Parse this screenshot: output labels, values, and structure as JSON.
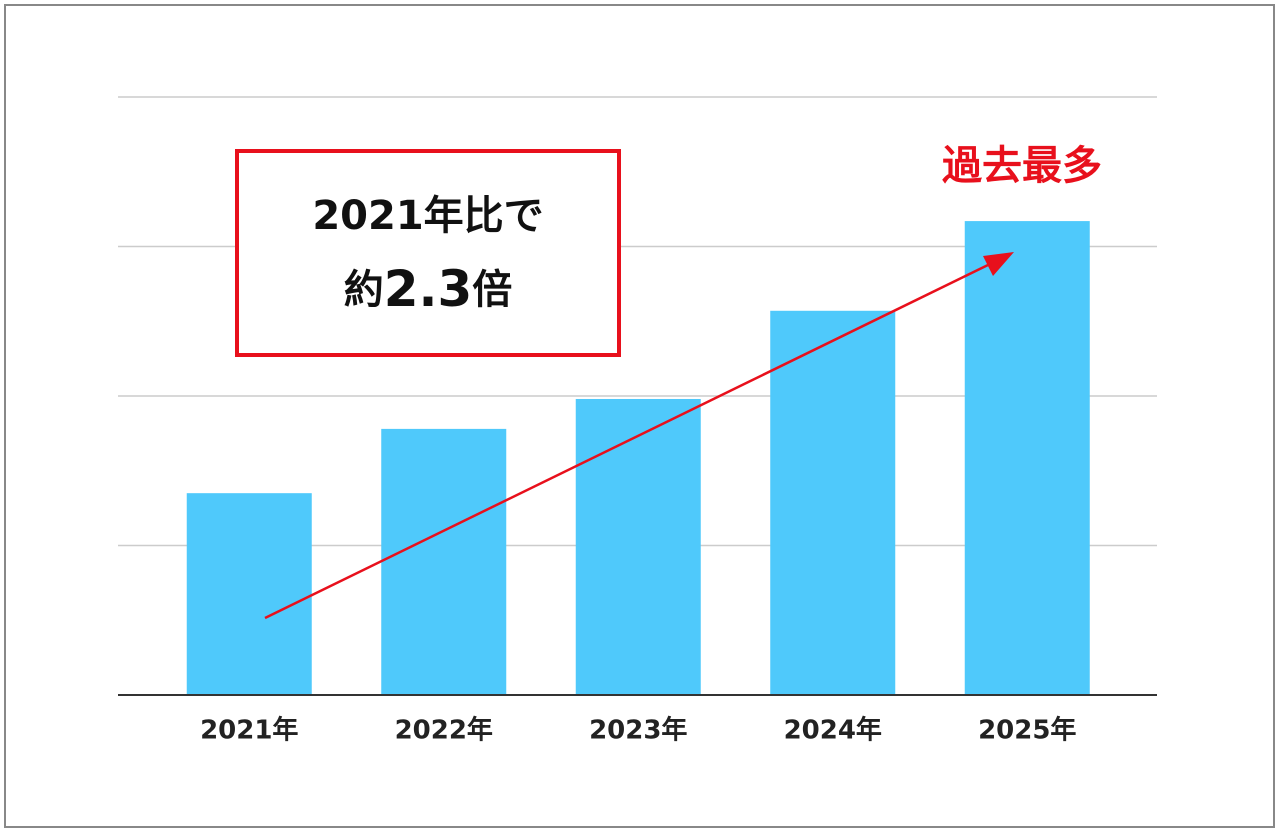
{
  "chart_data": {
    "type": "bar",
    "categories": [
      "2021年",
      "2022年",
      "2023年",
      "2024年",
      "2025年"
    ],
    "values": [
      1.35,
      1.78,
      1.98,
      2.57,
      3.17
    ],
    "color": "#4fc9fb",
    "ylim": [
      0,
      4
    ],
    "yticks": [
      0,
      1,
      2,
      3,
      4
    ],
    "grid": true,
    "annotations": {
      "callout_line1": "2021年比で",
      "callout_line2": [
        "約",
        "2.3",
        "倍"
      ],
      "peak_label": "過去最多",
      "color": "#e8101c"
    }
  }
}
